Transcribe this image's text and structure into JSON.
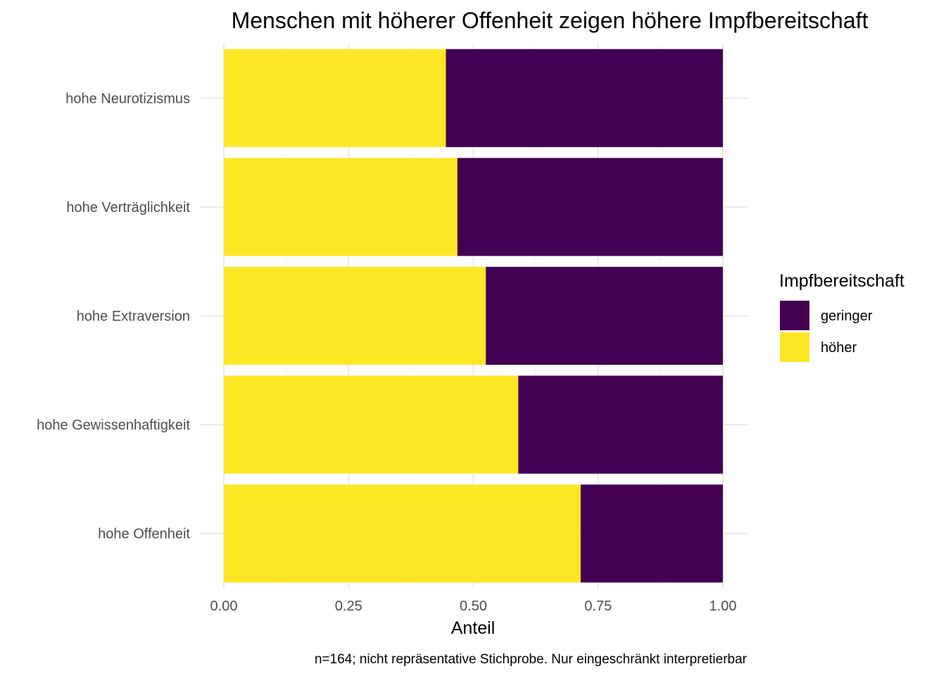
{
  "chart_data": {
    "type": "bar",
    "orientation": "horizontal",
    "stacked": true,
    "title": "Menschen mit höherer Offenheit zeigen höhere Impfbereitschaft",
    "xlabel": "Anteil",
    "ylabel": "",
    "caption": "n=164; nicht repräsentative Stichprobe. Nur eingeschränkt interpretierbar",
    "xlim": [
      0,
      1
    ],
    "x_ticks": [
      "0.00",
      "0.25",
      "0.50",
      "0.75",
      "1.00"
    ],
    "grid": true,
    "categories": [
      "hohe Neurotizismus",
      "hohe Verträglichkeit",
      "hohe Extraversion",
      "hohe Gewissenhaftigkeit",
      "hohe Offenheit"
    ],
    "series": [
      {
        "name": "höher",
        "color": "#FDE725",
        "values": [
          0.445,
          0.468,
          0.525,
          0.59,
          0.715
        ]
      },
      {
        "name": "geringer",
        "color": "#440154",
        "values": [
          0.555,
          0.532,
          0.475,
          0.41,
          0.285
        ]
      }
    ],
    "legend": {
      "title": "Impfbereitschaft",
      "position": "right",
      "items": [
        {
          "label": "geringer",
          "color": "#440154"
        },
        {
          "label": "höher",
          "color": "#FDE725"
        }
      ]
    }
  }
}
